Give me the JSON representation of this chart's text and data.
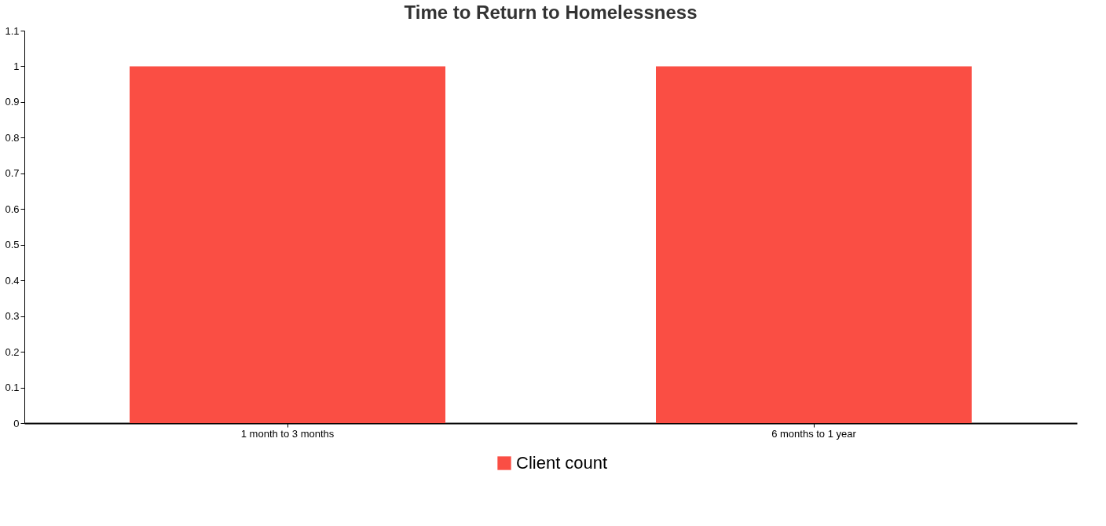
{
  "chart_data": {
    "type": "bar",
    "title": "Time to Return to Homelessness",
    "categories": [
      "1 month to 3 months",
      "6 months to 1 year"
    ],
    "series": [
      {
        "name": "Client count",
        "color": "#fa4e44",
        "values": [
          1,
          1
        ]
      }
    ],
    "ylim": [
      0,
      1.1
    ],
    "yticks": [
      0,
      0.1,
      0.2,
      0.3,
      0.4,
      0.5,
      0.6,
      0.7,
      0.8,
      0.9,
      1,
      1.1
    ],
    "grid": false,
    "legend": "bottom"
  }
}
